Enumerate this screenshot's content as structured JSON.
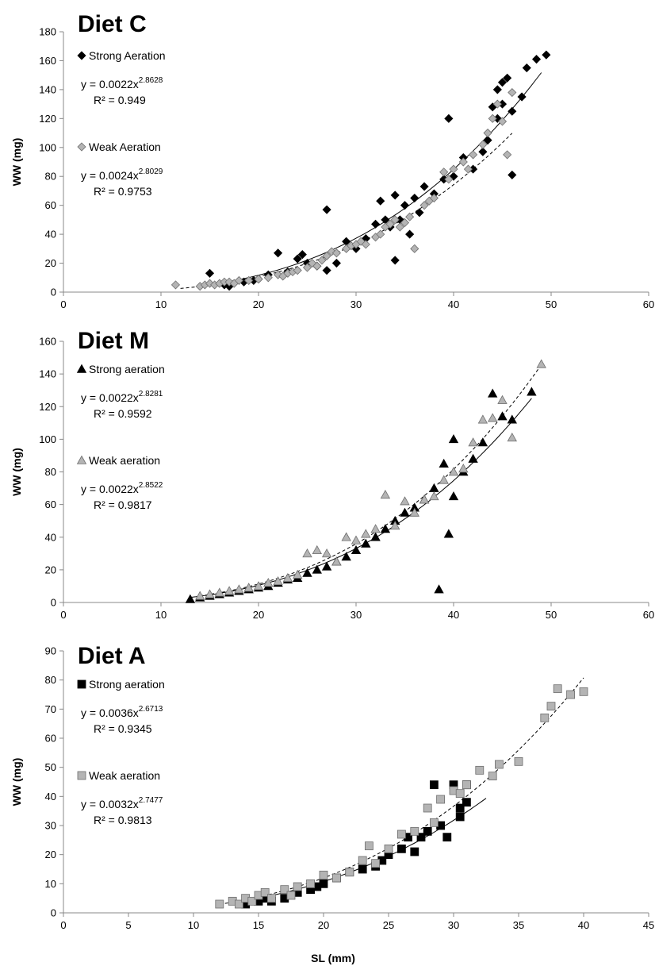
{
  "xlabel": "SL (mm)",
  "chart_data": [
    {
      "type": "scatter",
      "title": "Diet C",
      "ylabel": "WW (mg)",
      "xlim": [
        0,
        60
      ],
      "ylim": [
        0,
        180
      ],
      "xticks": [
        0,
        10,
        20,
        30,
        40,
        50,
        60
      ],
      "yticks": [
        0,
        20,
        40,
        60,
        80,
        100,
        120,
        140,
        160,
        180
      ],
      "marker": "diamond",
      "legend_position": "top-left",
      "series": [
        {
          "name": "Strong Aeration",
          "fit": {
            "a": 0.0022,
            "b": 2.8628,
            "x_range": [
              17,
              49
            ]
          },
          "equation_base": "y = 0.0022x",
          "equation_exp": "2.8628",
          "r2": "R² = 0.949",
          "color": "#000000",
          "x": [
            15,
            16.5,
            17,
            18.5,
            19.5,
            20,
            21,
            22,
            23,
            24,
            24.5,
            25,
            26,
            27,
            27,
            28,
            29,
            30,
            31,
            32,
            32.5,
            33,
            33.5,
            34,
            34,
            34.5,
            35,
            35.5,
            36,
            36.5,
            37,
            38,
            39,
            39.5,
            40,
            41,
            42,
            43,
            43.5,
            44,
            44.5,
            44.5,
            45,
            45,
            45.5,
            46,
            46,
            47,
            47.5,
            48.5,
            49.5
          ],
          "y": [
            13,
            5,
            4,
            7,
            8,
            9,
            12,
            27,
            14,
            23,
            26,
            20,
            18,
            57,
            15,
            20,
            35,
            30,
            37,
            47,
            63,
            50,
            45,
            22,
            67,
            50,
            60,
            40,
            65,
            55,
            73,
            68,
            78,
            120,
            80,
            93,
            85,
            97,
            105,
            128,
            120,
            140,
            145,
            130,
            148,
            125,
            81,
            135,
            155,
            161,
            164
          ]
        },
        {
          "name": "Weak Aeration",
          "fit": {
            "a": 0.0024,
            "b": 2.8029,
            "x_range": [
              12,
              46
            ]
          },
          "equation_base": "y = 0.0024x",
          "equation_exp": "2.8029",
          "r2": "R² = 0.9753",
          "color": "#b4b4b4",
          "x": [
            11.5,
            14,
            14.5,
            15,
            15.5,
            16,
            16.5,
            17,
            17.5,
            18,
            19,
            20,
            21,
            22,
            22.5,
            23,
            23.5,
            24,
            25,
            25.5,
            26,
            26.5,
            27,
            27.5,
            28,
            29,
            29.5,
            30,
            30.5,
            31,
            32,
            32.5,
            33,
            33.5,
            34,
            34.5,
            35,
            35.5,
            36,
            37,
            37.5,
            38,
            39,
            39.5,
            40,
            41,
            41.5,
            42,
            43,
            43.5,
            44,
            44.5,
            45,
            45.5,
            46
          ],
          "y": [
            5,
            4,
            5,
            6,
            5,
            6,
            7,
            7,
            6,
            8,
            8,
            9,
            10,
            12,
            11,
            13,
            14,
            15,
            17,
            20,
            18,
            22,
            25,
            28,
            27,
            30,
            32,
            33,
            35,
            33,
            38,
            40,
            45,
            47,
            50,
            45,
            48,
            52,
            30,
            60,
            63,
            65,
            83,
            78,
            85,
            90,
            85,
            95,
            102,
            110,
            120,
            130,
            118,
            95,
            138
          ]
        }
      ]
    },
    {
      "type": "scatter",
      "title": "Diet  M",
      "ylabel": "WW (mg)",
      "xlim": [
        0,
        60
      ],
      "ylim": [
        0,
        160
      ],
      "xticks": [
        0,
        10,
        20,
        30,
        40,
        50,
        60
      ],
      "yticks": [
        0,
        20,
        40,
        60,
        80,
        100,
        120,
        140,
        160
      ],
      "marker": "triangle",
      "legend_position": "top-left",
      "series": [
        {
          "name": "Strong aeration",
          "fit": {
            "a": 0.0022,
            "b": 2.8281,
            "x_range": [
              13,
              48
            ]
          },
          "equation_base": "y = 0.0022x",
          "equation_exp": "2.8281",
          "r2": "R² = 0.9592",
          "color": "#000000",
          "x": [
            13,
            14,
            15,
            16,
            17,
            18,
            19,
            20,
            21,
            22,
            23,
            24,
            25,
            26,
            27,
            28,
            29,
            30,
            31,
            32,
            33,
            34,
            35,
            36,
            37,
            38,
            38.5,
            39,
            39.5,
            40,
            40,
            41,
            42,
            43,
            44,
            45,
            46,
            48
          ],
          "y": [
            2,
            3,
            4,
            5,
            6,
            7,
            8,
            9,
            10,
            12,
            14,
            15,
            18,
            20,
            22,
            25,
            28,
            32,
            36,
            40,
            45,
            50,
            55,
            58,
            63,
            70,
            8,
            85,
            42,
            100,
            65,
            80,
            88,
            98,
            128,
            114,
            112,
            129
          ]
        },
        {
          "name": "Weak aeration",
          "fit": {
            "a": 0.0022,
            "b": 2.8522,
            "x_range": [
              14,
              49
            ]
          },
          "equation_base": "y = 0.0022x",
          "equation_exp": "2.8522",
          "r2": "R² = 0.9817",
          "color": "#b4b4b4",
          "x": [
            14,
            15,
            16,
            17,
            18,
            19,
            20,
            21,
            22,
            23,
            24,
            25,
            26,
            27,
            28,
            29,
            30,
            31,
            32,
            33,
            34,
            35,
            36,
            37,
            38,
            39,
            40,
            41,
            42,
            43,
            44,
            45,
            46,
            49
          ],
          "y": [
            4,
            5,
            6,
            7,
            8,
            9,
            10,
            12,
            13,
            15,
            17,
            30,
            32,
            30,
            25,
            40,
            38,
            42,
            45,
            66,
            47,
            62,
            55,
            63,
            65,
            75,
            80,
            82,
            98,
            112,
            113,
            124,
            101,
            146
          ]
        }
      ]
    },
    {
      "type": "scatter",
      "title": "Diet A",
      "ylabel": "WW (mg)",
      "xlim": [
        0,
        45
      ],
      "ylim": [
        0,
        90
      ],
      "xticks": [
        0,
        5,
        10,
        15,
        20,
        25,
        30,
        35,
        40,
        45
      ],
      "yticks": [
        0,
        10,
        20,
        30,
        40,
        50,
        60,
        70,
        80,
        90
      ],
      "marker": "square",
      "legend_position": "top-left",
      "series": [
        {
          "name": "Strong aeration",
          "fit": {
            "a": 0.0036,
            "b": 2.6713,
            "x_range": [
              14,
              32.5
            ]
          },
          "equation_base": "y = 0.0036x",
          "equation_exp": "2.6713",
          "r2": "R² = 0.9345",
          "color": "#000000",
          "x": [
            14,
            15,
            15.5,
            16,
            17,
            18,
            19,
            19.5,
            20,
            21,
            22,
            23,
            24,
            24.5,
            25,
            26,
            26.5,
            27,
            27.5,
            28,
            28.5,
            29,
            29.5,
            30,
            30.5,
            30.5,
            31,
            31
          ],
          "y": [
            3,
            4,
            5,
            4,
            5,
            7,
            8,
            9,
            10,
            12,
            14,
            15,
            16,
            18,
            20,
            22,
            26,
            21,
            26,
            28,
            44,
            30,
            26,
            44,
            33,
            36,
            38,
            44
          ]
        },
        {
          "name": "Weak aeration",
          "fit": {
            "a": 0.0032,
            "b": 2.7477,
            "x_range": [
              12,
              40
            ]
          },
          "equation_base": "y = 0.0032x",
          "equation_exp": "2.7477",
          "r2": "R² = 0.9813",
          "color": "#b4b4b4",
          "x": [
            12,
            13,
            13.5,
            14,
            14.5,
            15,
            15.5,
            16,
            17,
            17.5,
            18,
            19,
            20,
            21,
            22,
            23,
            23.5,
            24,
            25,
            26,
            27,
            28,
            28.5,
            29,
            30,
            30.5,
            31,
            32,
            33,
            33.5,
            35,
            37,
            37.5,
            38,
            39,
            40
          ],
          "y": [
            3,
            4,
            3,
            5,
            4,
            6,
            7,
            5,
            8,
            6,
            9,
            10,
            13,
            12,
            14,
            18,
            23,
            17,
            22,
            27,
            28,
            36,
            31,
            39,
            42,
            41,
            44,
            49,
            47,
            51,
            52,
            67,
            71,
            77,
            75,
            76
          ]
        }
      ]
    }
  ]
}
